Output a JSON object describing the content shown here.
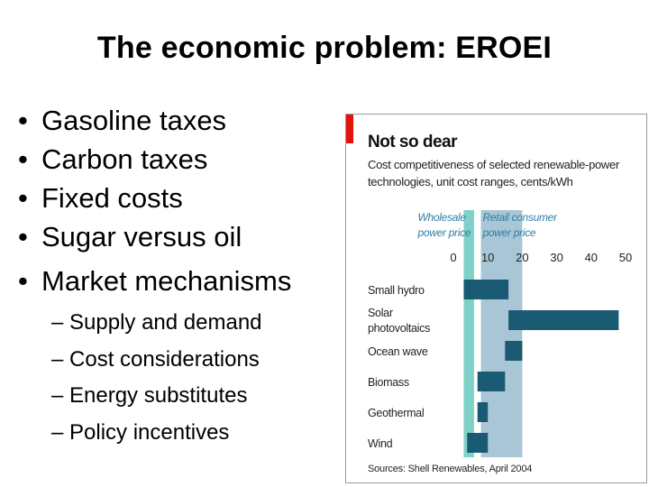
{
  "title": "The economic problem: EROEI",
  "bullets": [
    {
      "bullet": "•",
      "text": "Gasoline taxes"
    },
    {
      "bullet": "•",
      "text": "Carbon taxes"
    },
    {
      "bullet": "•",
      "text": "Fixed costs"
    },
    {
      "bullet": "•",
      "text": "Sugar versus oil"
    },
    {
      "bullet": "•",
      "text": "Market mechanisms"
    }
  ],
  "subbullets": [
    "– Supply and demand",
    "– Cost considerations",
    "– Energy substitutes",
    "– Policy incentives"
  ],
  "colors": {
    "accent_red": "#e3120b",
    "bar": "#1a5a73",
    "band_wholesale": "#7fd1c7",
    "band_retail": "#a9c6d6",
    "band_label": "#2f7fa6"
  },
  "chart_data": {
    "type": "bar",
    "orientation": "horizontal-range",
    "title": "Not so dear",
    "subtitle": "Cost competitiveness of selected renewable-power technologies, unit cost ranges, cents/kWh",
    "bands": [
      {
        "label": "Wholesale power price",
        "range": [
          3,
          6
        ]
      },
      {
        "label": "Retail consumer power price",
        "range": [
          8,
          20
        ]
      }
    ],
    "x_ticks": [
      0,
      10,
      20,
      30,
      40,
      50
    ],
    "xlim": [
      0,
      50
    ],
    "categories": [
      "Small hydro",
      "Solar photovoltaics",
      "Ocean wave",
      "Biomass",
      "Geothermal",
      "Wind"
    ],
    "ranges": [
      [
        3,
        16
      ],
      [
        16,
        48
      ],
      [
        15,
        20
      ],
      [
        7,
        15
      ],
      [
        7,
        10
      ],
      [
        4,
        10
      ]
    ],
    "source": "Sources: Shell Renewables, April 2004"
  }
}
